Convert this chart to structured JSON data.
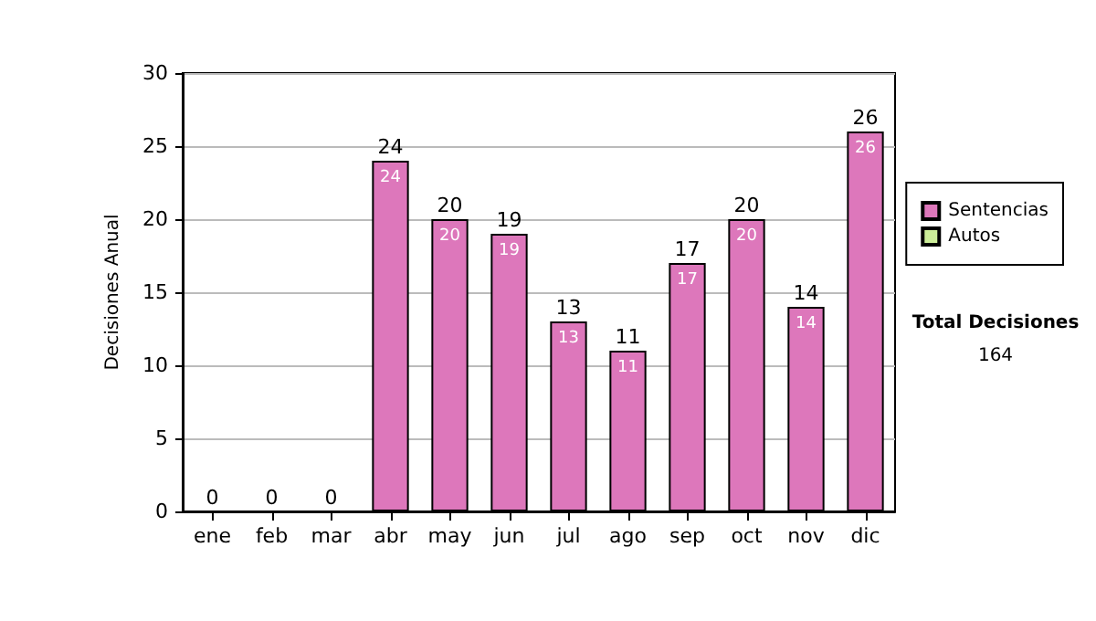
{
  "chart_data": {
    "type": "bar",
    "ylabel": "Decisiones Anual",
    "categories": [
      "ene",
      "feb",
      "mar",
      "abr",
      "may",
      "jun",
      "jul",
      "ago",
      "sep",
      "oct",
      "nov",
      "dic"
    ],
    "series": [
      {
        "name": "Sentencias",
        "color": "#dd77bb",
        "values": [
          0,
          0,
          0,
          24,
          20,
          19,
          13,
          11,
          17,
          20,
          14,
          26
        ],
        "value_labels": [
          null,
          null,
          null,
          "24",
          "20",
          "19",
          "13",
          "11",
          "17",
          "20",
          "14",
          "26"
        ]
      },
      {
        "name": "Autos",
        "color": "#ccee99",
        "values": [
          0,
          0,
          0,
          0,
          0,
          0,
          0,
          0,
          0,
          0,
          0,
          0
        ]
      }
    ],
    "stacked": true,
    "totals": [
      "0",
      "0",
      "0",
      "24",
      "20",
      "19",
      "13",
      "11",
      "17",
      "20",
      "14",
      "26"
    ],
    "ylim": [
      0,
      30
    ],
    "yticks": [
      0,
      5,
      10,
      15,
      20,
      25,
      30
    ],
    "grid": "y",
    "legend": "right",
    "annotations": [
      "Total Decisiones",
      "164"
    ]
  }
}
